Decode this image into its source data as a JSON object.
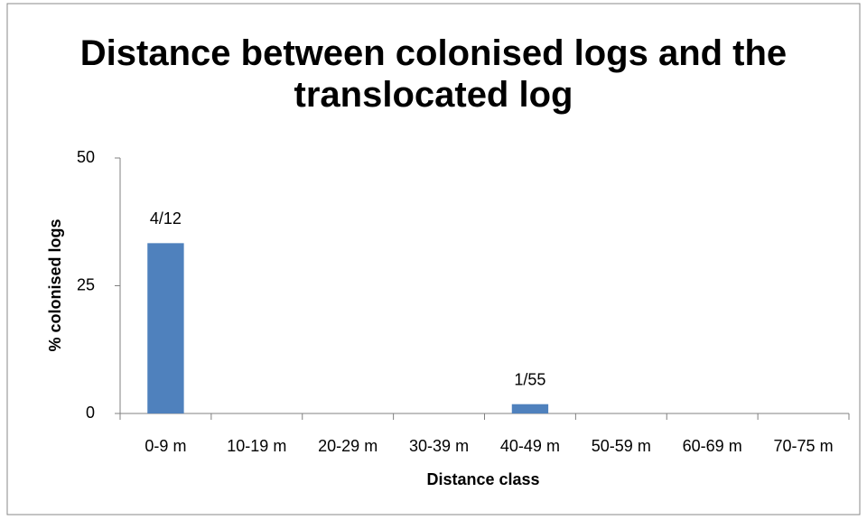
{
  "chart_data": {
    "type": "bar",
    "title": "Distance between colonised logs and the translocated log",
    "xlabel": "Distance class",
    "ylabel": "% colonised logs",
    "categories": [
      "0-9 m",
      "10-19 m",
      "20-29 m",
      "30-39 m",
      "40-49 m",
      "50-59 m",
      "60-69 m",
      "70-75 m"
    ],
    "values": [
      33.33,
      0,
      0,
      0,
      1.82,
      0,
      0,
      0
    ],
    "value_labels": [
      "4/12",
      null,
      null,
      null,
      "1/55",
      null,
      null,
      null
    ],
    "color": "#4f81bd",
    "ylim": [
      0,
      50
    ],
    "yticks": [
      0,
      25,
      50
    ],
    "grid": false
  }
}
